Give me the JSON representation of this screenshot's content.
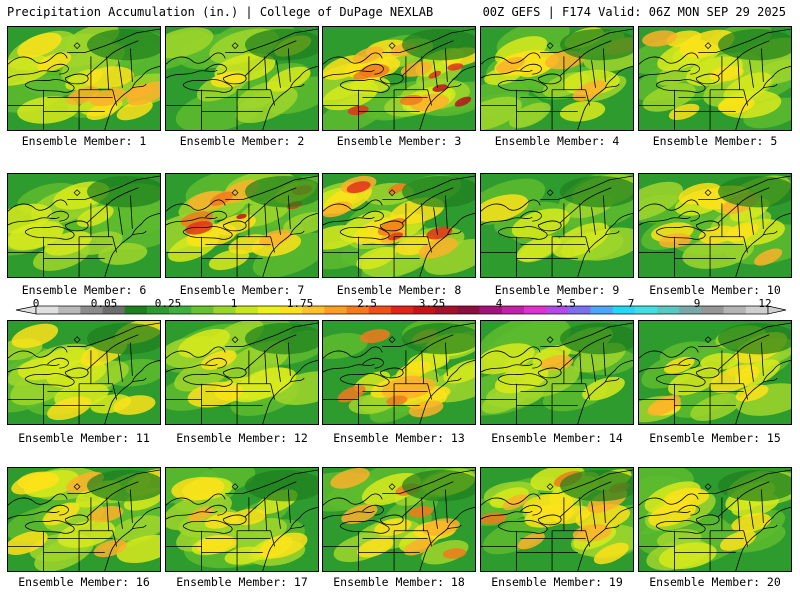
{
  "header": {
    "left": "Precipitation Accumulation (in.) | College of DuPage NEXLAB",
    "right": "00Z GEFS | F174 Valid: 06Z MON SEP 29 2025"
  },
  "colorbar": {
    "labels": [
      "0",
      "0.05",
      "0.25",
      "1",
      "1.75",
      "2.5",
      "3.25",
      "4",
      "5.5",
      "7",
      "9",
      "12"
    ],
    "colors": [
      "#e0e0e0",
      "#b8b8b8",
      "#8c8c8c",
      "#6e6e6e",
      "#1f7f1f",
      "#2f9a2f",
      "#3fb03f",
      "#66c22e",
      "#98d628",
      "#c8e61e",
      "#ecf217",
      "#fde21a",
      "#fdc22a",
      "#fb9e21",
      "#f57a1c",
      "#ee4f1b",
      "#e2231a",
      "#c8121a",
      "#a80f2a",
      "#8c0d3e",
      "#a3127a",
      "#c520a8",
      "#e031d0",
      "#b24ae6",
      "#7b6ff0",
      "#4ea5f5",
      "#22d8f5",
      "#3ee0e0",
      "#58c8c0",
      "#7aa8a8",
      "#969696",
      "#b4b4b4",
      "#cfcfcf"
    ]
  },
  "members": [
    {
      "label": "Ensemble Member: 1",
      "intensity": 0.45
    },
    {
      "label": "Ensemble Member: 2",
      "intensity": 0.15
    },
    {
      "label": "Ensemble Member: 3",
      "intensity": 0.9
    },
    {
      "label": "Ensemble Member: 4",
      "intensity": 0.5
    },
    {
      "label": "Ensemble Member: 5",
      "intensity": 0.3
    },
    {
      "label": "Ensemble Member: 6",
      "intensity": 0.25
    },
    {
      "label": "Ensemble Member: 7",
      "intensity": 0.85
    },
    {
      "label": "Ensemble Member: 8",
      "intensity": 0.75
    },
    {
      "label": "Ensemble Member: 9",
      "intensity": 0.2
    },
    {
      "label": "Ensemble Member: 10",
      "intensity": 0.55
    },
    {
      "label": "Ensemble Member: 11",
      "intensity": 0.4
    },
    {
      "label": "Ensemble Member: 12",
      "intensity": 0.35
    },
    {
      "label": "Ensemble Member: 13",
      "intensity": 0.6
    },
    {
      "label": "Ensemble Member: 14",
      "intensity": 0.2
    },
    {
      "label": "Ensemble Member: 15",
      "intensity": 0.35
    },
    {
      "label": "Ensemble Member: 16",
      "intensity": 0.5
    },
    {
      "label": "Ensemble Member: 17",
      "intensity": 0.3
    },
    {
      "label": "Ensemble Member: 18",
      "intensity": 0.7
    },
    {
      "label": "Ensemble Member: 19",
      "intensity": 0.6
    },
    {
      "label": "Ensemble Member: 20",
      "intensity": 0.3
    }
  ]
}
